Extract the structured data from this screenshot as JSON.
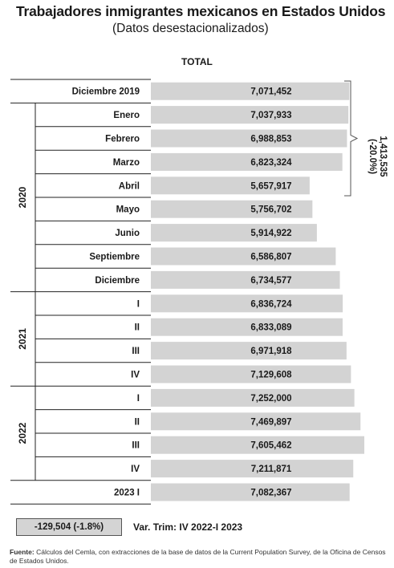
{
  "title": "Trabajadores inmigrantes mexicanos en Estados Unidos",
  "subtitle": "(Datos desestacionalizados)",
  "column_header": "TOTAL",
  "chart_data": {
    "type": "bar",
    "orientation": "horizontal",
    "title": "Trabajadores inmigrantes mexicanos en Estados Unidos",
    "subtitle": "(Datos desestacionalizados)",
    "series": [
      {
        "name": "TOTAL",
        "values": [
          7071452,
          7037933,
          6988853,
          6823324,
          5657917,
          5756702,
          5914922,
          6586807,
          6734577,
          6836724,
          6833089,
          6971918,
          7129608,
          7252000,
          7469897,
          7605462,
          7211871,
          7082367
        ]
      }
    ],
    "categories": [
      "Diciembre 2019",
      "Enero",
      "Febrero",
      "Marzo",
      "Abril",
      "Mayo",
      "Junio",
      "Septiembre",
      "Diciembre",
      "I",
      "II",
      "III",
      "IV",
      "I",
      "II",
      "III",
      "IV",
      "2023 I"
    ],
    "value_labels": [
      "7,071,452",
      "7,037,933",
      "6,988,853",
      "6,823,324",
      "5,657,917",
      "5,756,702",
      "5,914,922",
      "6,586,807",
      "6,734,577",
      "6,836,724",
      "6,833,089",
      "6,971,918",
      "7,129,608",
      "7,252,000",
      "7,469,897",
      "7,605,462",
      "7,211,871",
      "7,082,367"
    ],
    "groups": [
      {
        "label": "2020",
        "start": 1,
        "end": 8
      },
      {
        "label": "2021",
        "start": 9,
        "end": 12
      },
      {
        "label": "2022",
        "start": 13,
        "end": 16
      }
    ],
    "bar_color": "#d3d3d3",
    "annotations": [
      {
        "type": "bracket",
        "from_category": 0,
        "to_category": 4,
        "label_line1": "1,413,535",
        "label_line2": "(-20.0%)"
      }
    ]
  },
  "variation": {
    "value": "-129,504 (-1.8%)",
    "label": "Var. Trim: IV 2022-I 2023"
  },
  "source": {
    "prefix": "Fuente:",
    "text": "Cálculos del Cemla, con extracciones de la base de datos de la Current Population Survey, de la Oficina de Censos de Estados Unidos."
  }
}
